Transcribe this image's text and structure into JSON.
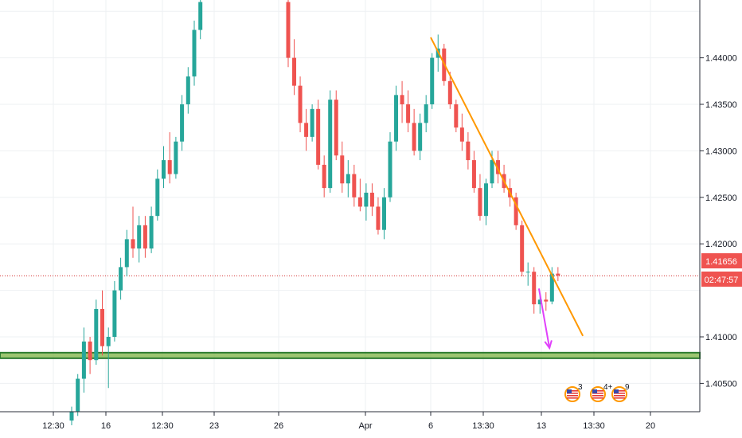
{
  "chart_data": {
    "type": "candlestick",
    "title": "",
    "xlabel": "",
    "ylabel": "",
    "ylim": [
      1.4,
      1.4465
    ],
    "y_ticks": [
      "1.44000",
      "1.43500",
      "1.43000",
      "1.42500",
      "1.42000",
      "1.41000",
      "1.40500"
    ],
    "x_ticks": [
      "12:30",
      "16",
      "12:30",
      "23",
      "26",
      "Apr",
      "6",
      "13:30",
      "13",
      "13:30",
      "20"
    ],
    "grid": true,
    "current_price": {
      "value": 1.41656,
      "label": "1.41656",
      "countdown": "02:47:57"
    },
    "support_zone": {
      "from": 1.4077,
      "to": 1.4083
    },
    "trendline": {
      "from": [
        41.1,
        1.4422
      ],
      "to": [
        58.4,
        1.4101
      ]
    },
    "arrow": {
      "from": [
        53.4,
        1.4152
      ],
      "to": [
        54.6,
        1.4088
      ]
    },
    "event_markers": [
      {
        "country": "US",
        "count": "3"
      },
      {
        "country": "US",
        "count": "4+"
      },
      {
        "country": "US",
        "count": "9"
      }
    ],
    "series": [
      {
        "ohlc": [
          [
            1.401,
            1.4025,
            1.4005,
            1.402
          ],
          [
            1.402,
            1.406,
            1.4015,
            1.4055
          ],
          [
            1.4055,
            1.411,
            1.404,
            1.4095
          ],
          [
            1.4095,
            1.41,
            1.406,
            1.4075
          ],
          [
            1.4075,
            1.414,
            1.407,
            1.413
          ],
          [
            1.413,
            1.415,
            1.408,
            1.409
          ],
          [
            1.409,
            1.411,
            1.4045,
            1.41
          ],
          [
            1.41,
            1.416,
            1.4095,
            1.415
          ],
          [
            1.415,
            1.4185,
            1.414,
            1.4175
          ],
          [
            1.4175,
            1.4215,
            1.4165,
            1.4205
          ],
          [
            1.4205,
            1.424,
            1.4185,
            1.4195
          ],
          [
            1.4195,
            1.423,
            1.418,
            1.422
          ],
          [
            1.422,
            1.423,
            1.4185,
            1.4195
          ],
          [
            1.4195,
            1.424,
            1.419,
            1.423
          ],
          [
            1.423,
            1.428,
            1.4225,
            1.427
          ],
          [
            1.427,
            1.4305,
            1.426,
            1.429
          ],
          [
            1.429,
            1.432,
            1.4265,
            1.4275
          ],
          [
            1.4275,
            1.4315,
            1.427,
            1.431
          ],
          [
            1.431,
            1.436,
            1.43,
            1.435
          ],
          [
            1.435,
            1.439,
            1.434,
            1.438
          ],
          [
            1.438,
            1.444,
            1.437,
            1.443
          ],
          [
            1.443,
            1.447,
            1.442,
            1.446
          ]
        ]
      },
      {
        "ohlc": [
          [
            1.446,
            1.447,
            1.439,
            1.44
          ],
          [
            1.44,
            1.442,
            1.436,
            1.437
          ],
          [
            1.437,
            1.438,
            1.432,
            1.433
          ],
          [
            1.433,
            1.4345,
            1.43,
            1.4315
          ],
          [
            1.4315,
            1.435,
            1.431,
            1.4345
          ],
          [
            1.4345,
            1.4355,
            1.428,
            1.4285
          ],
          [
            1.4285,
            1.4295,
            1.425,
            1.426
          ],
          [
            1.426,
            1.4365,
            1.4255,
            1.4355
          ],
          [
            1.4355,
            1.4365,
            1.429,
            1.4295
          ],
          [
            1.4295,
            1.431,
            1.4255,
            1.4265
          ],
          [
            1.4265,
            1.429,
            1.425,
            1.4275
          ],
          [
            1.4275,
            1.4285,
            1.424,
            1.425
          ],
          [
            1.425,
            1.427,
            1.4235,
            1.424
          ],
          [
            1.424,
            1.4265,
            1.4225,
            1.4255
          ],
          [
            1.4255,
            1.4265,
            1.423,
            1.424
          ],
          [
            1.424,
            1.425,
            1.421,
            1.4215
          ],
          [
            1.4215,
            1.426,
            1.4205,
            1.425
          ],
          [
            1.425,
            1.432,
            1.4245,
            1.431
          ],
          [
            1.431,
            1.437,
            1.43,
            1.436
          ],
          [
            1.436,
            1.4375,
            1.433,
            1.435
          ],
          [
            1.435,
            1.4365,
            1.432,
            1.433
          ],
          [
            1.433,
            1.4345,
            1.4295,
            1.43
          ],
          [
            1.43,
            1.434,
            1.429,
            1.433
          ],
          [
            1.433,
            1.436,
            1.432,
            1.435
          ],
          [
            1.435,
            1.4405,
            1.4345,
            1.44
          ],
          [
            1.44,
            1.4425,
            1.4385,
            1.441
          ],
          [
            1.441,
            1.4415,
            1.437,
            1.4375
          ],
          [
            1.4375,
            1.4385,
            1.4345,
            1.435
          ],
          [
            1.435,
            1.4355,
            1.432,
            1.4325
          ],
          [
            1.4325,
            1.434,
            1.43,
            1.431
          ],
          [
            1.431,
            1.432,
            1.428,
            1.429
          ],
          [
            1.429,
            1.43,
            1.4255,
            1.426
          ],
          [
            1.426,
            1.4275,
            1.4225,
            1.423
          ],
          [
            1.423,
            1.427,
            1.422,
            1.4265
          ],
          [
            1.4265,
            1.43,
            1.426,
            1.429
          ],
          [
            1.429,
            1.43,
            1.4265,
            1.4275
          ],
          [
            1.4275,
            1.4285,
            1.4255,
            1.426
          ],
          [
            1.426,
            1.427,
            1.424,
            1.425
          ],
          [
            1.425,
            1.4255,
            1.4215,
            1.422
          ],
          [
            1.422,
            1.4225,
            1.4165,
            1.417
          ],
          [
            1.417,
            1.418,
            1.4155,
            1.417
          ],
          [
            1.417,
            1.4175,
            1.4125,
            1.4135
          ],
          [
            1.4135,
            1.4145,
            1.4125,
            1.414
          ],
          [
            1.414,
            1.4148,
            1.4128,
            1.4138
          ],
          [
            1.4138,
            1.4175,
            1.4135,
            1.4168
          ],
          [
            1.4168,
            1.4175,
            1.416,
            1.4166
          ]
        ]
      }
    ]
  }
}
